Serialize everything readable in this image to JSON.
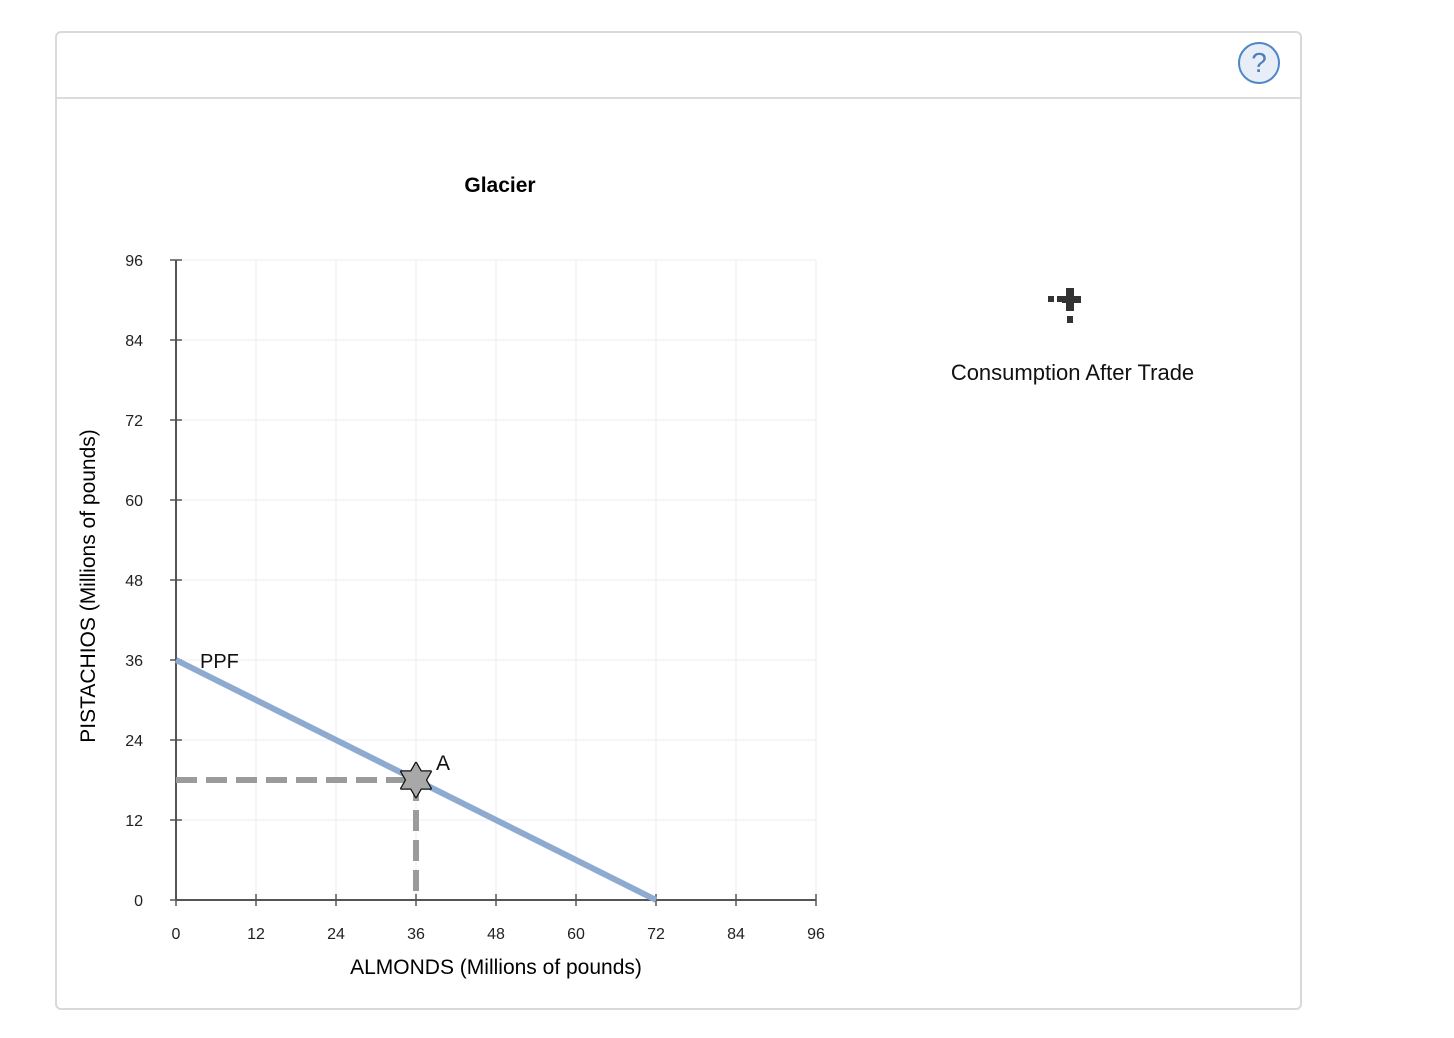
{
  "toolbar": {
    "help_glyph": "?"
  },
  "tool": {
    "label": "Consumption After Trade",
    "icon": "cross-plus-icon"
  },
  "colors": {
    "ppf": "#8daad0",
    "dash": "#9b9b9b",
    "grid": "#ececec",
    "axis": "#555555",
    "point_fill": "#a8a8a8"
  },
  "chart_data": {
    "type": "line",
    "title": "Glacier",
    "xlabel": "ALMONDS (Millions of pounds)",
    "ylabel": "PISTACHIOS (Millions of pounds)",
    "xlim": [
      0,
      96
    ],
    "ylim": [
      0,
      96
    ],
    "xticks": [
      "0",
      "12",
      "24",
      "36",
      "48",
      "60",
      "72",
      "84",
      "96"
    ],
    "yticks": [
      "0",
      "12",
      "24",
      "36",
      "48",
      "60",
      "72",
      "84",
      "96"
    ],
    "grid": true,
    "series": [
      {
        "name": "PPF",
        "x": [
          0,
          72
        ],
        "y": [
          36,
          0
        ]
      }
    ],
    "points": [
      {
        "label": "A",
        "x": 36,
        "y": 18
      }
    ]
  }
}
